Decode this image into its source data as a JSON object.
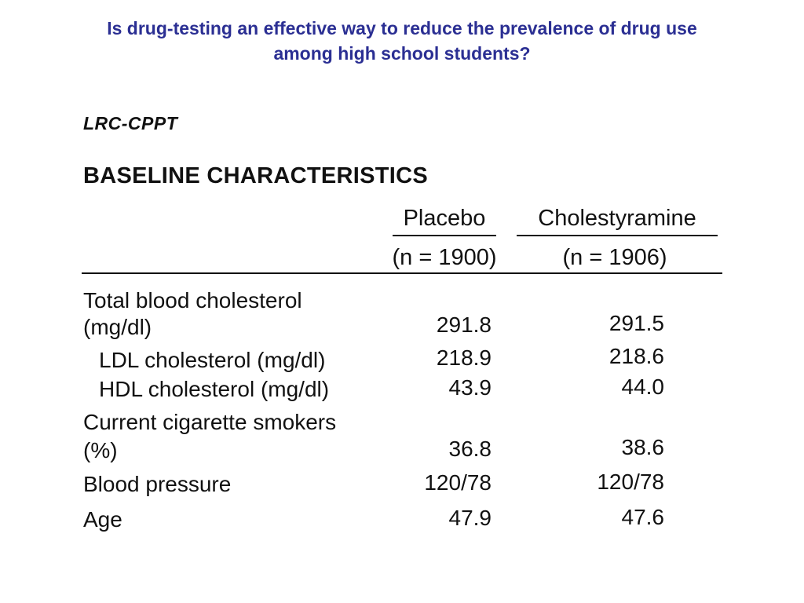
{
  "slide": {
    "title_line1": "Is drug-testing an effective way to reduce the prevalence of drug use",
    "title_line2": "among high school students?",
    "title_color": "#2b2f93"
  },
  "table": {
    "study": "LRC-CPPT",
    "heading": "BASELINE CHARACTERISTICS",
    "columns": [
      {
        "name": "Placebo",
        "n": "(n = 1900)"
      },
      {
        "name": "Cholestyramine",
        "n": "(n = 1906)"
      }
    ],
    "rows": [
      {
        "label_line1": "Total blood cholesterol",
        "label_line2": "(mg/dl)",
        "placebo": "291.8",
        "cholestyramine": "291.5"
      },
      {
        "label": "LDL cholesterol (mg/dl)",
        "placebo": "218.9",
        "cholestyramine": "218.6"
      },
      {
        "label": "HDL cholesterol (mg/dl)",
        "placebo": "43.9",
        "cholestyramine": "44.0"
      },
      {
        "label_line1": "Current cigarette smokers",
        "label_line2": "(%)",
        "placebo": "36.8",
        "cholestyramine": "38.6"
      },
      {
        "label": "Blood pressure",
        "placebo": "120/78",
        "cholestyramine": "120/78"
      },
      {
        "label": "Age",
        "placebo": "47.9",
        "cholestyramine": "47.6"
      }
    ]
  }
}
